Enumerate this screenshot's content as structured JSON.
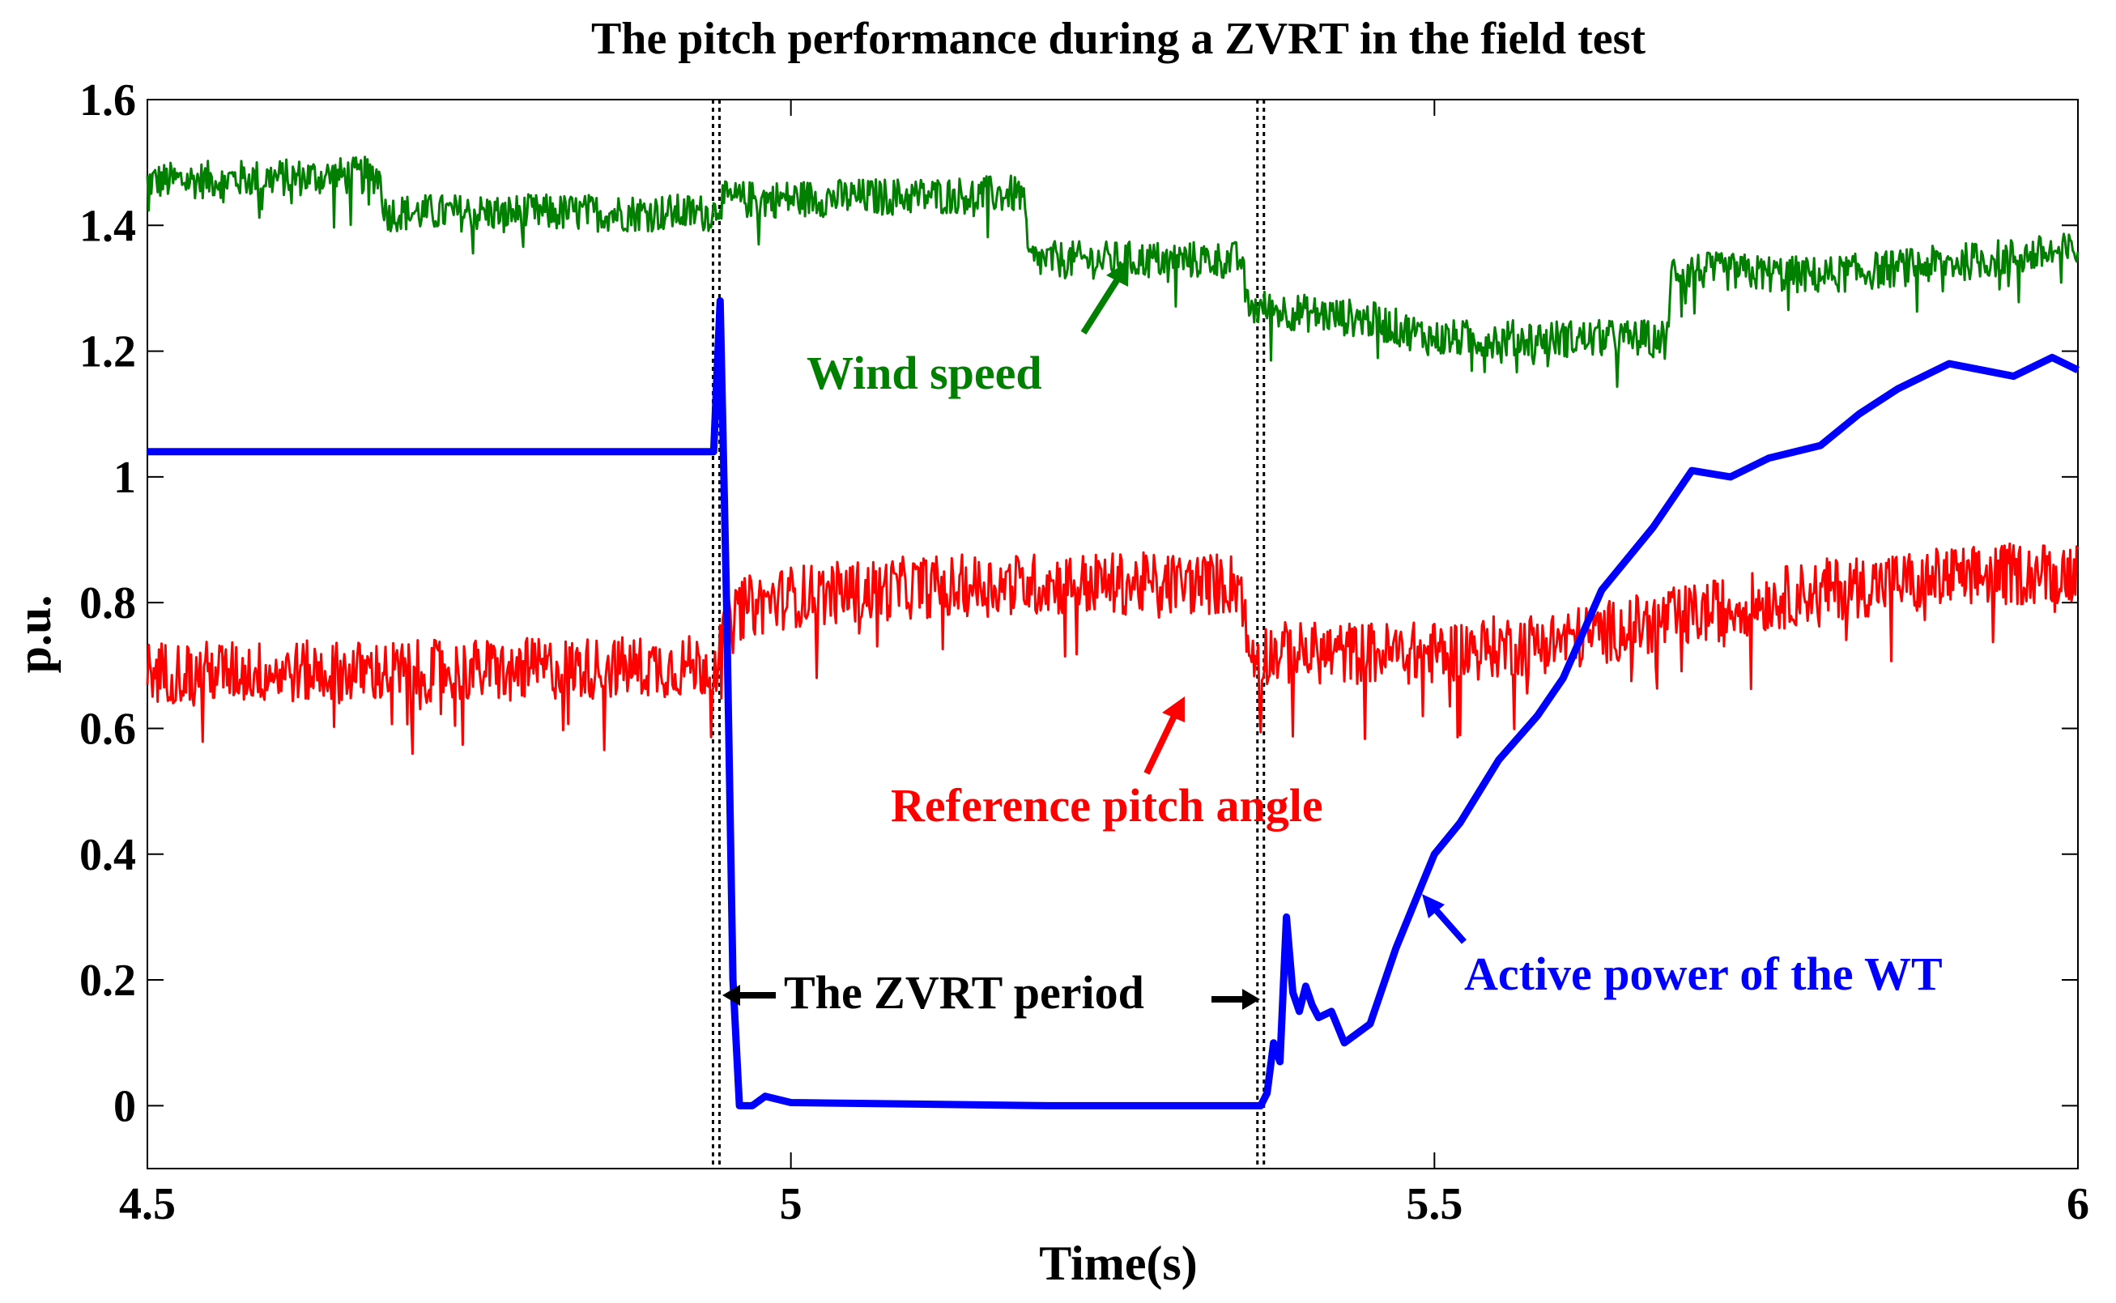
{
  "chart_data": {
    "type": "line",
    "title": "The pitch performance during a ZVRT in the field test",
    "xlabel": "Time(s)",
    "ylabel": "p.u.",
    "xlim": [
      4.5,
      6.0
    ],
    "ylim": [
      -0.1,
      1.6
    ],
    "xticks": [
      4.5,
      5.0,
      5.5,
      6.0
    ],
    "xtick_labels": [
      "4.5",
      "5",
      "5.5",
      "6"
    ],
    "yticks": [
      0.0,
      0.2,
      0.4,
      0.6,
      0.8,
      1.0,
      1.2,
      1.4,
      1.6
    ],
    "ytick_labels": [
      "0",
      "0.2",
      "0.4",
      "0.6",
      "0.8",
      "1",
      "1.2",
      "1.4",
      "1.6"
    ],
    "grid": false,
    "zvrt_markers": [
      4.942,
      5.365
    ],
    "series": [
      {
        "name": "Wind speed",
        "color": "#007f00",
        "noise": 0.03,
        "x": [
          4.5,
          4.68,
          4.685,
          4.94,
          4.945,
          5.18,
          5.185,
          5.35,
          5.355,
          5.45,
          5.5,
          5.6,
          5.68,
          5.685,
          5.8,
          5.9,
          6.0
        ],
        "y": [
          1.47,
          1.48,
          1.42,
          1.42,
          1.44,
          1.45,
          1.345,
          1.345,
          1.27,
          1.25,
          1.22,
          1.22,
          1.22,
          1.33,
          1.32,
          1.34,
          1.36
        ]
      },
      {
        "name": "Reference pitch angle",
        "color": "#ff0000",
        "noise": 0.05,
        "x": [
          4.5,
          4.7,
          4.94,
          4.96,
          5.0,
          5.1,
          5.2,
          5.35,
          5.355,
          5.5,
          5.6,
          5.7,
          5.8,
          5.9,
          6.0
        ],
        "y": [
          0.69,
          0.69,
          0.7,
          0.79,
          0.81,
          0.825,
          0.83,
          0.83,
          0.72,
          0.72,
          0.74,
          0.78,
          0.82,
          0.84,
          0.85
        ]
      },
      {
        "name": "Active power of the WT",
        "color": "#0000ff",
        "noise": 0,
        "x": [
          4.5,
          4.6,
          4.7,
          4.8,
          4.9,
          4.94,
          4.945,
          4.95,
          4.955,
          4.96,
          4.97,
          4.98,
          5.0,
          5.2,
          5.365,
          5.37,
          5.375,
          5.38,
          5.385,
          5.39,
          5.395,
          5.4,
          5.405,
          5.41,
          5.42,
          5.43,
          5.45,
          5.47,
          5.49,
          5.5,
          5.52,
          5.55,
          5.58,
          5.6,
          5.63,
          5.67,
          5.7,
          5.73,
          5.76,
          5.8,
          5.83,
          5.86,
          5.9,
          5.95,
          5.98,
          6.0
        ],
        "y": [
          1.04,
          1.04,
          1.04,
          1.04,
          1.04,
          1.04,
          1.28,
          0.8,
          0.2,
          0.0,
          0.0,
          0.015,
          0.005,
          0.0,
          0.0,
          0.02,
          0.1,
          0.07,
          0.3,
          0.18,
          0.15,
          0.19,
          0.16,
          0.14,
          0.15,
          0.1,
          0.13,
          0.25,
          0.35,
          0.4,
          0.45,
          0.55,
          0.62,
          0.68,
          0.82,
          0.92,
          1.01,
          1.0,
          1.03,
          1.05,
          1.1,
          1.14,
          1.18,
          1.16,
          1.19,
          1.17
        ]
      }
    ],
    "annotations": [
      {
        "text": "Wind speed",
        "color": "#007f00"
      },
      {
        "text": "Reference pitch angle",
        "color": "#ff0000"
      },
      {
        "text": "The ZVRT period",
        "color": "#000000"
      },
      {
        "text": "Active power of the WT",
        "color": "#0000ff"
      }
    ]
  }
}
